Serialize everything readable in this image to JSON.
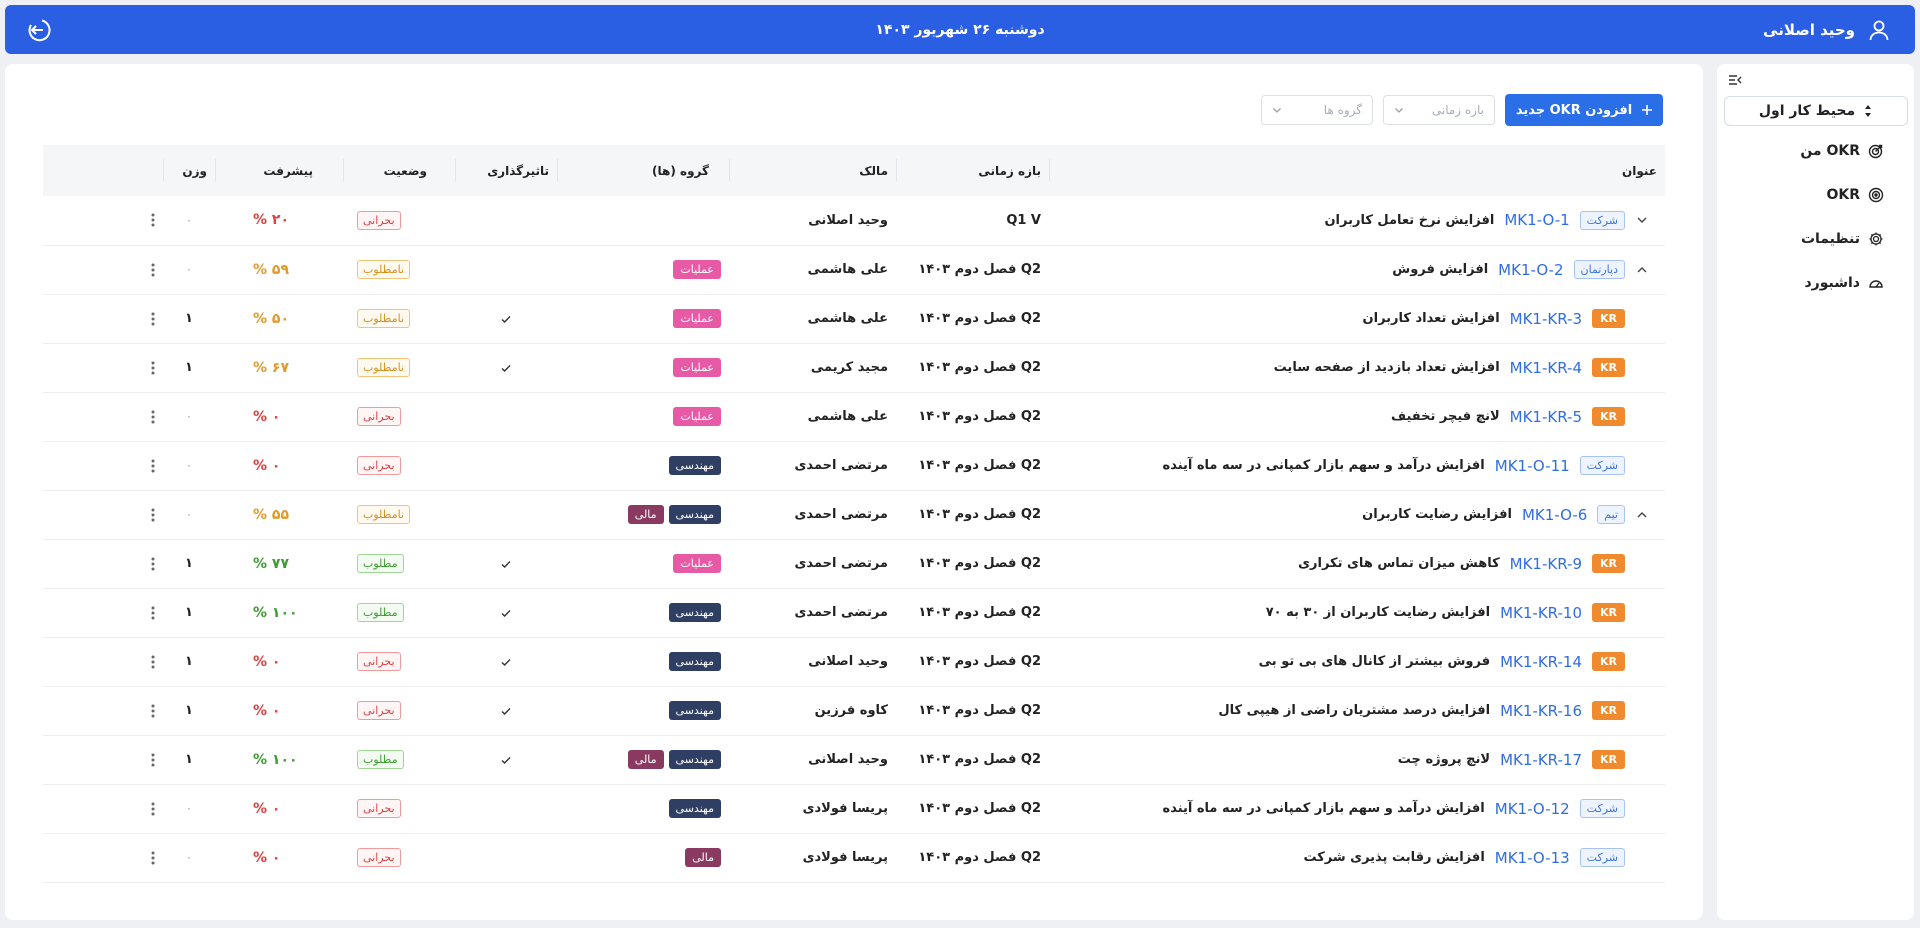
{
  "topbar": {
    "user_name": "وحید اصلانی",
    "date": "دوشنبه ۲۶ شهریور ۱۴۰۳",
    "color": "#2b5fe3"
  },
  "sidebar": {
    "workspace": "محیط کار اول",
    "items": [
      {
        "label": "OKR من",
        "icon": "my-okr-icon"
      },
      {
        "label": "OKR",
        "icon": "target-icon"
      },
      {
        "label": "تنظیمات",
        "icon": "gear-icon"
      },
      {
        "label": "داشبورد",
        "icon": "gauge-icon"
      }
    ]
  },
  "toolbar": {
    "add_label": "افزودن OKR جدید",
    "period_placeholder": "بازه زمانی",
    "groups_placeholder": "گروه ها"
  },
  "table": {
    "headers": {
      "title": "عنوان",
      "period": "بازه زمانی",
      "owner": "مالک",
      "groups": "گروه (ها)",
      "impact": "تاثیرگذاری",
      "status": "وضعیت",
      "progress": "پیشرفت",
      "weight": "وزن"
    },
    "rows": [
      {
        "expander": "down",
        "type": "شرکت",
        "kind": "obj",
        "code": "MK1-O-1",
        "title": "افزایش نرخ تعامل کاربران",
        "period": "Q1 V",
        "owner": "وحید اصلانی",
        "groups": [],
        "impact": "",
        "status": "بحرانی",
        "status_kind": "critical",
        "progress": "۲۰ %",
        "weight": "۰"
      },
      {
        "expander": "up",
        "type": "دپارتمان",
        "kind": "obj",
        "code": "MK1-O-2",
        "title": "افزایش فروش",
        "period": "Q2 فصل دوم ۱۴۰۳",
        "owner": "علی هاشمی",
        "groups": [
          {
            "label": "عملیات",
            "color": "#e75aa6"
          }
        ],
        "impact": "",
        "status": "نامطلوب",
        "status_kind": "unfav",
        "progress": "۵۹ %",
        "weight": "۰"
      },
      {
        "expander": "",
        "type": "KR",
        "kind": "kr",
        "code": "MK1-KR-3",
        "title": "افزایش تعداد کاربران",
        "period": "Q2 فصل دوم ۱۴۰۳",
        "owner": "علی هاشمی",
        "groups": [
          {
            "label": "عملیات",
            "color": "#e75aa6"
          }
        ],
        "impact": "✓",
        "status": "نامطلوب",
        "status_kind": "unfav",
        "progress": "۵۰ %",
        "weight": "۱"
      },
      {
        "expander": "",
        "type": "KR",
        "kind": "kr",
        "code": "MK1-KR-4",
        "title": "افزایش تعداد بازدید از صفحه سایت",
        "period": "Q2 فصل دوم ۱۴۰۳",
        "owner": "مجید کریمی",
        "groups": [
          {
            "label": "عملیات",
            "color": "#e75aa6"
          }
        ],
        "impact": "✓",
        "status": "نامطلوب",
        "status_kind": "unfav",
        "progress": "۶۷ %",
        "weight": "۱"
      },
      {
        "expander": "",
        "type": "KR",
        "kind": "kr",
        "code": "MK1-KR-5",
        "title": "لانچ فیچر تخفیف",
        "period": "Q2 فصل دوم ۱۴۰۳",
        "owner": "علی هاشمی",
        "groups": [
          {
            "label": "عملیات",
            "color": "#e75aa6"
          }
        ],
        "impact": "",
        "status": "بحرانی",
        "status_kind": "critical",
        "progress": "۰ %",
        "weight": "۰"
      },
      {
        "expander": "",
        "type": "شرکت",
        "kind": "obj",
        "code": "MK1-O-11",
        "title": "افزایش درآمد و سهم بازار کمپانی در سه ماه آینده",
        "period": "Q2 فصل دوم ۱۴۰۳",
        "owner": "مرتضی احمدی",
        "groups": [
          {
            "label": "مهندسی",
            "color": "#2f3e63"
          }
        ],
        "impact": "",
        "status": "بحرانی",
        "status_kind": "critical",
        "progress": "۰ %",
        "weight": "۰"
      },
      {
        "expander": "up",
        "type": "تیم",
        "kind": "obj",
        "code": "MK1-O-6",
        "title": "افزایش رضایت کاربران",
        "period": "Q2 فصل دوم ۱۴۰۳",
        "owner": "مرتضی احمدی",
        "groups": [
          {
            "label": "مهندسی",
            "color": "#2f3e63"
          },
          {
            "label": "مالی",
            "color": "#8a3a61"
          }
        ],
        "impact": "",
        "status": "نامطلوب",
        "status_kind": "unfav",
        "progress": "۵۵ %",
        "weight": "۰"
      },
      {
        "expander": "",
        "type": "KR",
        "kind": "kr",
        "code": "MK1-KR-9",
        "title": "کاهش میزان تماس های تکراری",
        "period": "Q2 فصل دوم ۱۴۰۳",
        "owner": "مرتضی احمدی",
        "groups": [
          {
            "label": "عملیات",
            "color": "#e75aa6"
          }
        ],
        "impact": "✓",
        "status": "مطلوب",
        "status_kind": "fav",
        "progress": "۷۷ %",
        "weight": "۱"
      },
      {
        "expander": "",
        "type": "KR",
        "kind": "kr",
        "code": "MK1-KR-10",
        "title": "افزایش رضایت کاربران از ۳۰ به ۷۰",
        "period": "Q2 فصل دوم ۱۴۰۳",
        "owner": "مرتضی احمدی",
        "groups": [
          {
            "label": "مهندسی",
            "color": "#2f3e63"
          }
        ],
        "impact": "✓",
        "status": "مطلوب",
        "status_kind": "fav",
        "progress": "۱۰۰ %",
        "weight": "۱"
      },
      {
        "expander": "",
        "type": "KR",
        "kind": "kr",
        "code": "MK1-KR-14",
        "title": "فروش بیشتر از کانال های بی تو بی",
        "period": "Q2 فصل دوم ۱۴۰۳",
        "owner": "وحید اصلانی",
        "groups": [
          {
            "label": "مهندسی",
            "color": "#2f3e63"
          }
        ],
        "impact": "✓",
        "status": "بحرانی",
        "status_kind": "critical",
        "progress": "۰ %",
        "weight": "۱"
      },
      {
        "expander": "",
        "type": "KR",
        "kind": "kr",
        "code": "MK1-KR-16",
        "title": "افزایش درصد مشتریان راضی از هیپی کال",
        "period": "Q2 فصل دوم ۱۴۰۳",
        "owner": "کاوه فرزین",
        "groups": [
          {
            "label": "مهندسی",
            "color": "#2f3e63"
          }
        ],
        "impact": "✓",
        "status": "بحرانی",
        "status_kind": "critical",
        "progress": "۰ %",
        "weight": "۱"
      },
      {
        "expander": "",
        "type": "KR",
        "kind": "kr",
        "code": "MK1-KR-17",
        "title": "لانچ پروژه چت",
        "period": "Q2 فصل دوم ۱۴۰۳",
        "owner": "وحید اصلانی",
        "groups": [
          {
            "label": "مهندسی",
            "color": "#2f3e63"
          },
          {
            "label": "مالی",
            "color": "#8a3a61"
          }
        ],
        "impact": "✓",
        "status": "مطلوب",
        "status_kind": "fav",
        "progress": "۱۰۰ %",
        "weight": "۱"
      },
      {
        "expander": "",
        "type": "شرکت",
        "kind": "obj",
        "code": "MK1-O-12",
        "title": "افزایش درآمد و سهم بازار کمپانی در سه ماه آینده",
        "period": "Q2 فصل دوم ۱۴۰۳",
        "owner": "پریسا فولادی",
        "groups": [
          {
            "label": "مهندسی",
            "color": "#2f3e63"
          }
        ],
        "impact": "",
        "status": "بحرانی",
        "status_kind": "critical",
        "progress": "۰ %",
        "weight": "۰"
      },
      {
        "expander": "",
        "type": "شرکت",
        "kind": "obj",
        "code": "MK1-O-13",
        "title": "افزایش رقابت پذیری شرکت",
        "period": "Q2 فصل دوم ۱۴۰۳",
        "owner": "پریسا فولادی",
        "groups": [
          {
            "label": "مالی",
            "color": "#8a3a61"
          }
        ],
        "impact": "",
        "status": "بحرانی",
        "status_kind": "critical",
        "progress": "۰ %",
        "weight": "۰"
      }
    ]
  },
  "colors": {
    "progress_critical": "#e0413f",
    "progress_unfav": "#e39a27",
    "progress_fav": "#3f9c35"
  }
}
